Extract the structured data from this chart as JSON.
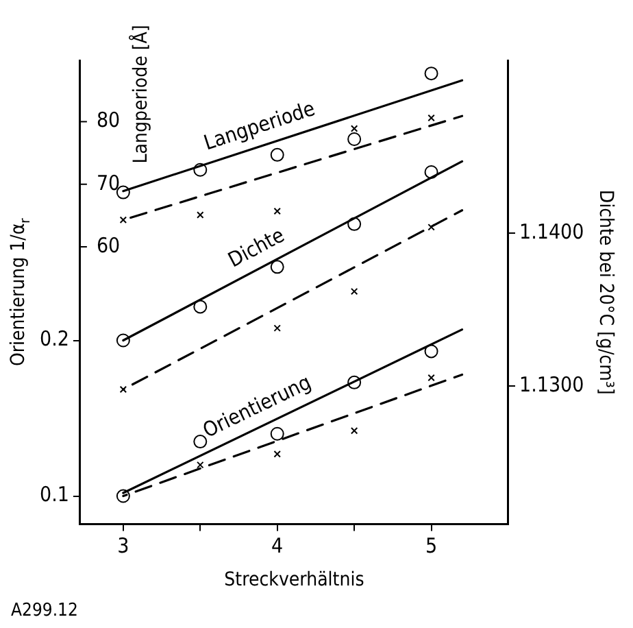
{
  "chart_data": {
    "type": "line",
    "xlabel": "Streckverhältnis",
    "ylabel": "Orientierung 1/α$_{r}$",
    "y2label": "Dichte bei 20°C [g/cm³]",
    "y3label": "Langperiode [Å]",
    "xlim": [
      2.72,
      5.5
    ],
    "xticks": [
      3,
      {
        "value": 3.5,
        "label": null
      },
      4,
      {
        "value": 4.5,
        "label": null
      },
      5
    ],
    "ylim": [
      0.082,
      0.38
    ],
    "yticks": [
      0.1,
      0.2
    ],
    "y2lim": [
      1.121,
      1.1513
    ],
    "y2ticks": [
      {
        "value": 1.13,
        "label": "1.1300"
      },
      {
        "value": 1.14,
        "label": "1.1400"
      }
    ],
    "y3lim": [
      15.7,
      89.8
    ],
    "y3ticks": [
      60,
      70,
      80
    ],
    "grid": false,
    "legend": false,
    "annotations": [
      "A299.12"
    ],
    "series": [
      {
        "type": "scatter",
        "marker": "circle",
        "color": "#000000",
        "x": [
          3,
          3.5,
          4,
          4.5,
          5
        ],
        "values": [
          0.1,
          0.135,
          0.14,
          0.173,
          0.193
        ]
      },
      {
        "type": "scatter",
        "marker": "cross",
        "color": "#000000",
        "x": [
          3.5,
          4,
          4.5,
          5
        ],
        "values": [
          0.12,
          0.127,
          0.142,
          0.176
        ]
      },
      {
        "name": "Orientierung",
        "line_style": "solid",
        "color": "#000000",
        "x": [
          3,
          5.2
        ],
        "values": [
          0.102,
          0.207
        ]
      },
      {
        "line_style": "dashed",
        "color": "#000000",
        "x": [
          3,
          5.2
        ],
        "values": [
          0.1,
          0.178
        ]
      },
      {
        "type": "scatter",
        "axis": "y2",
        "marker": "circle",
        "color": "#000000",
        "x": [
          3,
          3.5,
          4,
          4.5,
          5
        ],
        "values": [
          1.133,
          1.1352,
          1.1378,
          1.1406,
          1.144
        ]
      },
      {
        "type": "scatter",
        "axis": "y2",
        "marker": "cross",
        "color": "#000000",
        "x": [
          3,
          4,
          4.5,
          5
        ],
        "values": [
          1.1298,
          1.1338,
          1.1362,
          1.1404
        ]
      },
      {
        "axis": "y2",
        "name": "Dichte",
        "line_style": "solid",
        "color": "#000000",
        "x": [
          3,
          5.2
        ],
        "values": [
          1.133,
          1.1447
        ]
      },
      {
        "axis": "y2",
        "line_style": "dashed",
        "color": "#000000",
        "x": [
          3,
          5.2
        ],
        "values": [
          1.1298,
          1.1415
        ]
      },
      {
        "type": "scatter",
        "axis": "y3",
        "marker": "circle",
        "color": "#000000",
        "x": [
          3,
          3.5,
          4,
          4.5,
          5
        ],
        "values": [
          68.7,
          72.3,
          74.7,
          77.2,
          87.7
        ]
      },
      {
        "type": "scatter",
        "axis": "y3",
        "marker": "cross",
        "color": "#000000",
        "x": [
          3,
          3.5,
          4,
          4.5,
          5
        ],
        "values": [
          64.3,
          65.1,
          65.7,
          78.9,
          80.6
        ]
      },
      {
        "axis": "y3",
        "name": "Langperiode",
        "line_style": "solid",
        "color": "#000000",
        "x": [
          3,
          5.2
        ],
        "values": [
          68.9,
          86.6
        ]
      },
      {
        "axis": "y3",
        "line_style": "dashed",
        "color": "#000000",
        "x": [
          3,
          5.2
        ],
        "values": [
          64.3,
          80.9
        ]
      }
    ]
  }
}
